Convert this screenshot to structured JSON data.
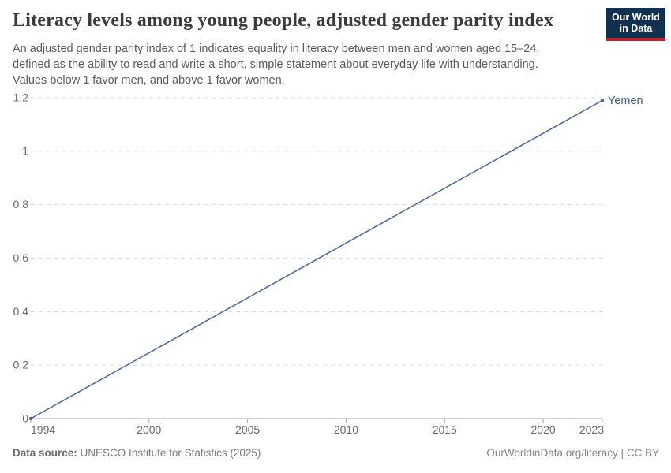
{
  "header": {
    "title": "Literacy levels among young people, adjusted gender parity index",
    "subtitle_lines": [
      "An adjusted gender parity index of 1 indicates equality in literacy between men and women aged 15–24,",
      "defined as the ability to read and write a short, simple statement about everyday life with understanding.",
      "Values below 1 favor men, and above 1 favor women."
    ],
    "logo": {
      "line1": "Our World",
      "line2": "in Data",
      "bg_color": "#12304f",
      "stripe_color": "#c0232e"
    }
  },
  "chart_data": {
    "type": "line",
    "series": [
      {
        "name": "Yemen",
        "x": [
          1994,
          2023
        ],
        "values": [
          0,
          1.19
        ]
      }
    ],
    "x_ticks": [
      1994,
      2000,
      2005,
      2010,
      2015,
      2020,
      2023
    ],
    "y_ticks": [
      0,
      0.2,
      0.4,
      0.6,
      0.8,
      1,
      1.2
    ],
    "xlim": [
      1994,
      2023
    ],
    "ylim": [
      0,
      1.2
    ],
    "grid": "horizontal dashed",
    "legend_position": "end-of-line label",
    "line_color": "#4565a4",
    "series_label_color": "#3d5c8f",
    "axis_color": "#a8a8a8",
    "gridline_color": "#dadada",
    "tick_label_color": "#686868"
  },
  "footer": {
    "source_label": "Data source:",
    "source_text": "UNESCO Institute for Statistics (2025)",
    "credit": "OurWorldinData.org/literacy | CC BY"
  }
}
